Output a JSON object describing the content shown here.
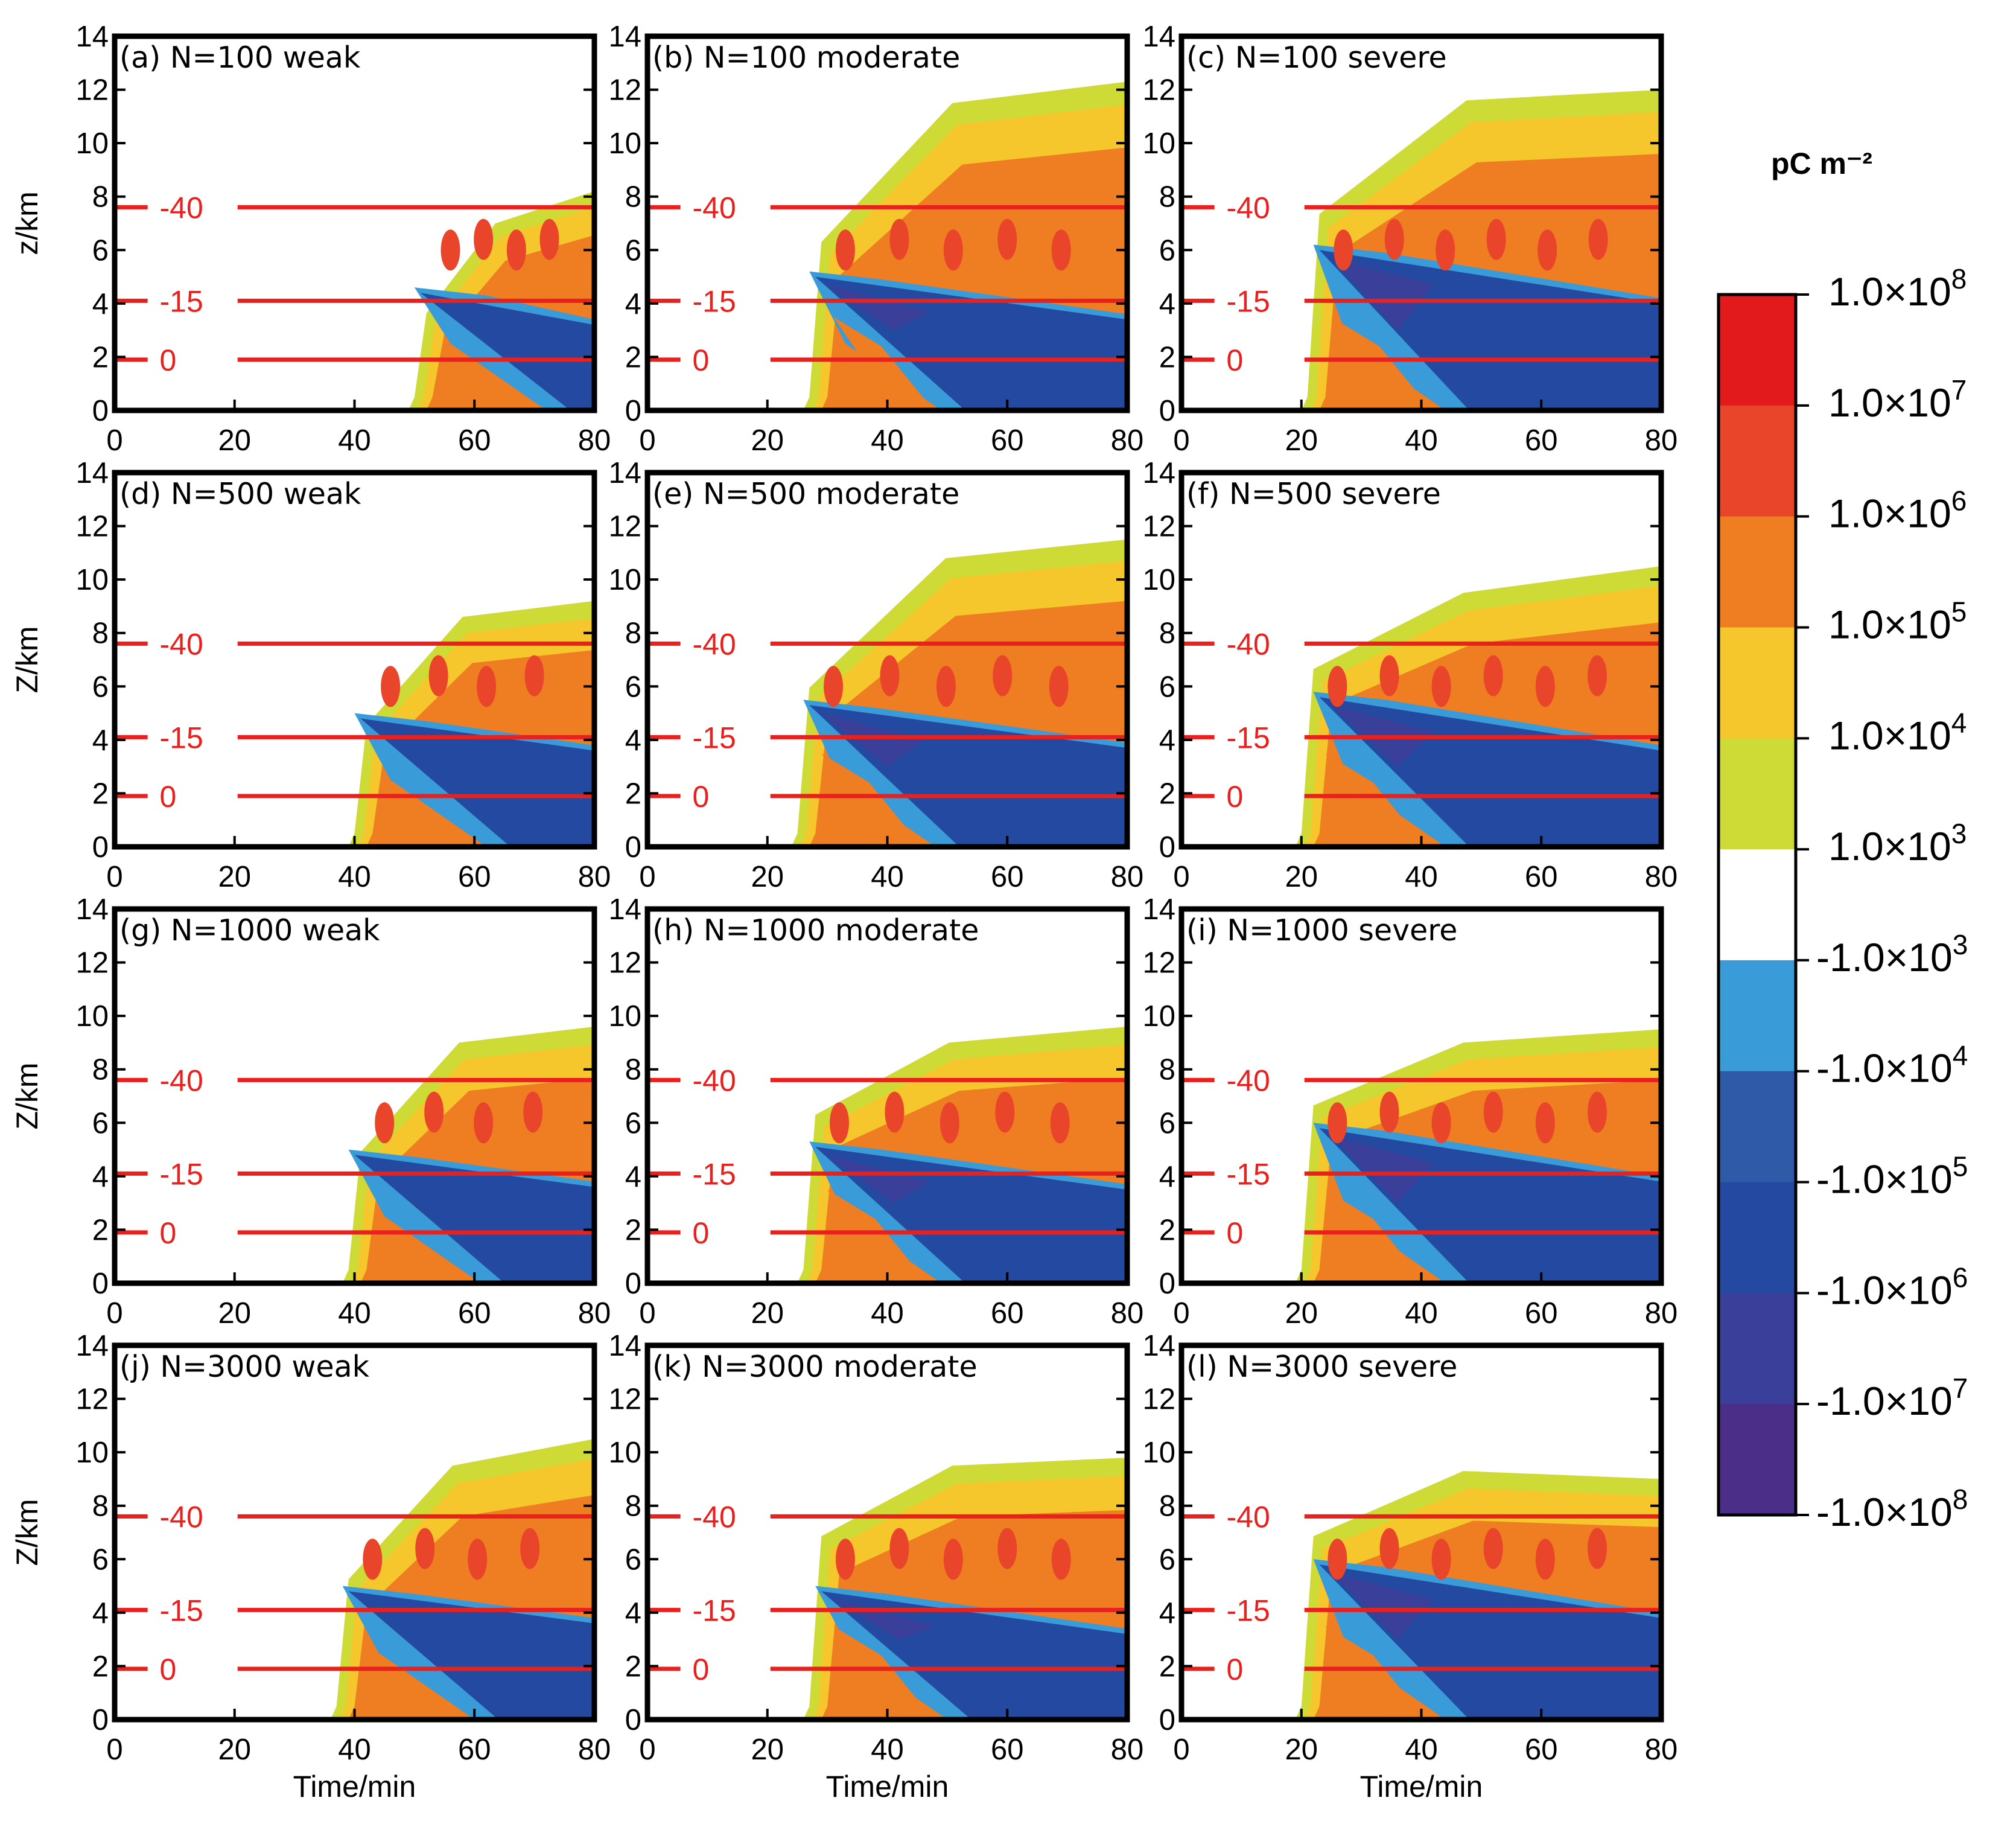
{
  "chart_data": {
    "type": "filled-contour",
    "description_units": "charge density",
    "x_axis": {
      "label": "Time/min",
      "range": [
        0,
        80
      ],
      "ticks": [
        "0",
        "20",
        "40",
        "60",
        "80"
      ]
    },
    "y_axis": {
      "label": "Z/km",
      "first_row_label": "z/km",
      "range": [
        0,
        14
      ],
      "ticks": [
        "0",
        "2",
        "4",
        "6",
        "8",
        "10",
        "12",
        "14"
      ]
    },
    "colorbar": {
      "title": "pC m⁻²",
      "levels": [
        {
          "label": "1.0×10^8",
          "color": "#e31a1c"
        },
        {
          "label": "1.0×10^7",
          "color": "#e8452a"
        },
        {
          "label": "1.0×10^6",
          "color": "#ef7d22"
        },
        {
          "label": "1.0×10^5",
          "color": "#f5c72c"
        },
        {
          "label": "1.0×10^4",
          "color": "#cedb36"
        },
        {
          "label": "1.0×10^3",
          "color": "#ffffff"
        },
        {
          "label": "-1.0×10^3",
          "color": "#3a9bd9"
        },
        {
          "label": "-1.0×10^4",
          "color": "#2f5aa8"
        },
        {
          "label": "-1.0×10^5",
          "color": "#2449a0"
        },
        {
          "label": "-1.0×10^6",
          "color": "#3a3f9a"
        },
        {
          "label": "-1.0×10^7",
          "color": "#4a2e87"
        },
        {
          "label": "-1.0×10^8",
          "color": ""
        }
      ]
    },
    "isotherms": [
      {
        "label": "-40",
        "height_km": 7.6
      },
      {
        "label": "-15",
        "height_km": 4.1
      },
      {
        "label": "0",
        "height_km": 1.9
      }
    ],
    "panels": [
      {
        "id": "a",
        "title": "(a) N=100 weak",
        "onset_min": 50,
        "top_km": [
          5.2,
          7.0,
          8.2
        ],
        "neg_top_km": 4.6,
        "neg_start": 50,
        "strength": 1
      },
      {
        "id": "b",
        "title": "(b) N=100 moderate",
        "onset_min": 27,
        "top_km": [
          9.0,
          11.5,
          12.3
        ],
        "neg_top_km": 5.2,
        "neg_start": 27,
        "strength": 2
      },
      {
        "id": "c",
        "title": "(c) N=100 severe",
        "onset_min": 21,
        "top_km": [
          10.5,
          11.6,
          12.0
        ],
        "neg_top_km": 6.2,
        "neg_start": 22,
        "strength": 3
      },
      {
        "id": "d",
        "title": "(d) N=500 weak",
        "onset_min": 40,
        "top_km": [
          6.5,
          8.6,
          9.2
        ],
        "neg_top_km": 5.0,
        "neg_start": 40,
        "strength": 1
      },
      {
        "id": "e",
        "title": "(e) N=500 moderate",
        "onset_min": 25,
        "top_km": [
          8.5,
          10.8,
          11.5
        ],
        "neg_top_km": 5.5,
        "neg_start": 26,
        "strength": 2
      },
      {
        "id": "f",
        "title": "(f) N=500 severe",
        "onset_min": 20,
        "top_km": [
          9.5,
          9.5,
          10.5
        ],
        "neg_top_km": 5.8,
        "neg_start": 22,
        "strength": 3
      },
      {
        "id": "g",
        "title": "(g) N=1000 weak",
        "onset_min": 39,
        "top_km": [
          7.0,
          9.0,
          9.6
        ],
        "neg_top_km": 5.0,
        "neg_start": 39,
        "strength": 1
      },
      {
        "id": "h",
        "title": "(h) N=1000 moderate",
        "onset_min": 26,
        "top_km": [
          9.0,
          9.0,
          9.6
        ],
        "neg_top_km": 5.3,
        "neg_start": 27,
        "strength": 2
      },
      {
        "id": "i",
        "title": "(i) N=1000 severe",
        "onset_min": 20,
        "top_km": [
          9.5,
          9.0,
          9.5
        ],
        "neg_top_km": 6.0,
        "neg_start": 22,
        "strength": 3
      },
      {
        "id": "j",
        "title": "(j) N=3000 weak",
        "onset_min": 37,
        "top_km": [
          7.5,
          9.5,
          10.5
        ],
        "neg_top_km": 5.0,
        "neg_start": 38,
        "strength": 1
      },
      {
        "id": "k",
        "title": "(k) N=3000 moderate",
        "onset_min": 27,
        "top_km": [
          9.8,
          9.5,
          9.8
        ],
        "neg_top_km": 5.0,
        "neg_start": 28,
        "strength": 2
      },
      {
        "id": "l",
        "title": "(l) N=3000 severe",
        "onset_min": 20,
        "top_km": [
          9.8,
          9.3,
          9.0
        ],
        "neg_top_km": 6.0,
        "neg_start": 22,
        "strength": 3
      }
    ]
  }
}
